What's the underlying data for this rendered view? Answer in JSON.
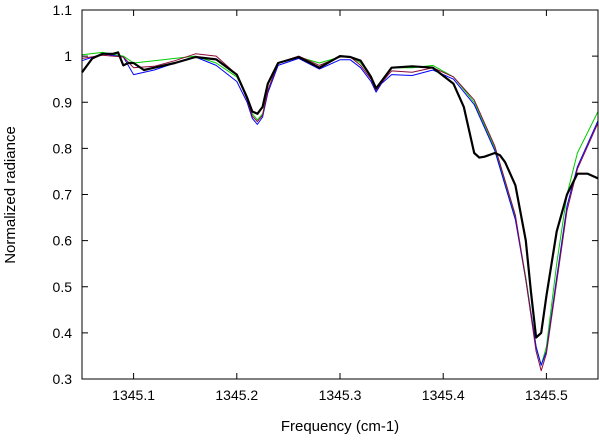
{
  "chart_data": {
    "type": "line",
    "xlabel": "Frequency (cm-1)",
    "ylabel": "Normalized radiance",
    "xlim": [
      1345.05,
      1345.55
    ],
    "ylim": [
      0.3,
      1.1
    ],
    "x_ticks": [
      1345.1,
      1345.2,
      1345.3,
      1345.4,
      1345.5
    ],
    "x_tick_labels": [
      "1345.1",
      "1345.2",
      "1345.3",
      "1345.4",
      "1345.5"
    ],
    "y_ticks": [
      0.3,
      0.4,
      0.5,
      0.6,
      0.7,
      0.8,
      0.9,
      1.0,
      1.1
    ],
    "y_tick_labels": [
      "0.3",
      "0.4",
      "0.5",
      "0.6",
      "0.7",
      "0.8",
      "0.9",
      "1",
      "1.1"
    ],
    "grid": false,
    "series": [
      {
        "color": "#00cc00",
        "x": [
          1345.05,
          1345.07,
          1345.09,
          1345.1,
          1345.12,
          1345.14,
          1345.16,
          1345.18,
          1345.2,
          1345.21,
          1345.215,
          1345.22,
          1345.225,
          1345.23,
          1345.24,
          1345.26,
          1345.28,
          1345.3,
          1345.31,
          1345.32,
          1345.33,
          1345.335,
          1345.34,
          1345.35,
          1345.37,
          1345.39,
          1345.41,
          1345.43,
          1345.45,
          1345.47,
          1345.48,
          1345.49,
          1345.495,
          1345.5,
          1345.51,
          1345.52,
          1345.53,
          1345.55
        ],
        "y": [
          1.003,
          1.008,
          1.0,
          0.985,
          0.99,
          0.995,
          1.0,
          0.985,
          0.955,
          0.91,
          0.875,
          0.862,
          0.875,
          0.925,
          0.985,
          0.998,
          0.985,
          0.998,
          0.998,
          0.985,
          0.955,
          0.93,
          0.945,
          0.975,
          0.975,
          0.98,
          0.955,
          0.9,
          0.8,
          0.65,
          0.52,
          0.37,
          0.33,
          0.37,
          0.55,
          0.7,
          0.79,
          0.88
        ]
      },
      {
        "color": "#0000ff",
        "x": [
          1345.05,
          1345.07,
          1345.09,
          1345.1,
          1345.12,
          1345.14,
          1345.16,
          1345.18,
          1345.2,
          1345.21,
          1345.215,
          1345.22,
          1345.225,
          1345.23,
          1345.24,
          1345.26,
          1345.28,
          1345.3,
          1345.31,
          1345.32,
          1345.33,
          1345.335,
          1345.34,
          1345.35,
          1345.37,
          1345.39,
          1345.41,
          1345.43,
          1345.45,
          1345.47,
          1345.48,
          1345.49,
          1345.495,
          1345.5,
          1345.51,
          1345.52,
          1345.53,
          1345.55
        ],
        "y": [
          0.99,
          1.005,
          0.998,
          0.96,
          0.97,
          0.985,
          0.998,
          0.98,
          0.945,
          0.9,
          0.865,
          0.852,
          0.868,
          0.92,
          0.98,
          0.995,
          0.972,
          0.992,
          0.992,
          0.975,
          0.945,
          0.922,
          0.94,
          0.96,
          0.958,
          0.97,
          0.95,
          0.895,
          0.795,
          0.645,
          0.515,
          0.37,
          0.33,
          0.36,
          0.52,
          0.675,
          0.76,
          0.86
        ]
      },
      {
        "color": "#8b0a3a",
        "x": [
          1345.05,
          1345.07,
          1345.09,
          1345.1,
          1345.12,
          1345.14,
          1345.16,
          1345.18,
          1345.2,
          1345.21,
          1345.215,
          1345.22,
          1345.225,
          1345.23,
          1345.24,
          1345.26,
          1345.28,
          1345.3,
          1345.31,
          1345.32,
          1345.33,
          1345.335,
          1345.34,
          1345.35,
          1345.37,
          1345.39,
          1345.41,
          1345.43,
          1345.45,
          1345.47,
          1345.48,
          1345.49,
          1345.495,
          1345.5,
          1345.51,
          1345.52,
          1345.53,
          1345.55
        ],
        "y": [
          0.995,
          1.002,
          0.998,
          0.975,
          0.978,
          0.99,
          1.005,
          1.0,
          0.96,
          0.905,
          0.87,
          0.858,
          0.872,
          0.925,
          0.985,
          1.0,
          0.98,
          0.998,
          0.998,
          0.98,
          0.95,
          0.926,
          0.942,
          0.968,
          0.965,
          0.975,
          0.955,
          0.905,
          0.805,
          0.655,
          0.515,
          0.36,
          0.318,
          0.355,
          0.51,
          0.665,
          0.755,
          0.855
        ]
      },
      {
        "color": "#000000",
        "x": [
          1345.05,
          1345.06,
          1345.07,
          1345.08,
          1345.085,
          1345.09,
          1345.095,
          1345.1,
          1345.11,
          1345.12,
          1345.14,
          1345.16,
          1345.18,
          1345.2,
          1345.21,
          1345.215,
          1345.22,
          1345.225,
          1345.23,
          1345.24,
          1345.26,
          1345.28,
          1345.3,
          1345.31,
          1345.32,
          1345.33,
          1345.335,
          1345.34,
          1345.35,
          1345.37,
          1345.39,
          1345.41,
          1345.42,
          1345.43,
          1345.435,
          1345.44,
          1345.45,
          1345.455,
          1345.46,
          1345.47,
          1345.48,
          1345.485,
          1345.49,
          1345.495,
          1345.5,
          1345.51,
          1345.52,
          1345.53,
          1345.54,
          1345.55
        ],
        "y": [
          0.965,
          0.995,
          1.005,
          1.005,
          1.008,
          0.98,
          0.985,
          0.985,
          0.97,
          0.975,
          0.985,
          0.998,
          0.993,
          0.96,
          0.91,
          0.88,
          0.875,
          0.89,
          0.94,
          0.985,
          0.998,
          0.975,
          1.0,
          0.998,
          0.99,
          0.955,
          0.93,
          0.945,
          0.975,
          0.978,
          0.975,
          0.94,
          0.89,
          0.79,
          0.78,
          0.782,
          0.79,
          0.785,
          0.77,
          0.72,
          0.6,
          0.49,
          0.39,
          0.4,
          0.48,
          0.62,
          0.7,
          0.745,
          0.745,
          0.735
        ]
      }
    ]
  }
}
